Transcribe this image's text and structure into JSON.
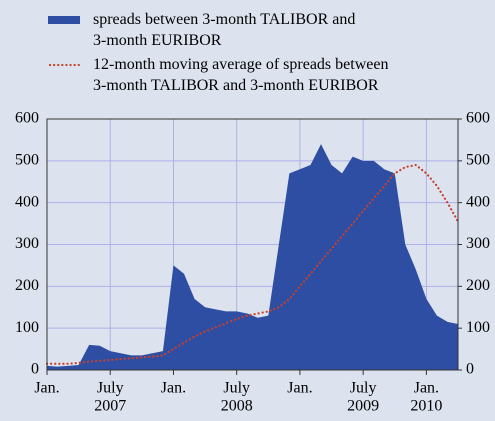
{
  "chart_data": {
    "type": "area",
    "x": [
      "2007-01",
      "2007-02",
      "2007-03",
      "2007-04",
      "2007-05",
      "2007-06",
      "2007-07",
      "2007-08",
      "2007-09",
      "2007-10",
      "2007-11",
      "2007-12",
      "2008-01",
      "2008-02",
      "2008-03",
      "2008-04",
      "2008-05",
      "2008-06",
      "2008-07",
      "2008-08",
      "2008-09",
      "2008-10",
      "2008-11",
      "2008-12",
      "2009-01",
      "2009-02",
      "2009-03",
      "2009-04",
      "2009-05",
      "2009-06",
      "2009-07",
      "2009-08",
      "2009-09",
      "2009-10",
      "2009-11",
      "2009-12",
      "2010-01",
      "2010-02",
      "2010-03",
      "2010-04"
    ],
    "series": [
      {
        "name": "spreads between 3-month TALIBOR and\n3-month  EURIBOR",
        "color": "#2d4ea3",
        "style": "area",
        "values": [
          10,
          8,
          10,
          12,
          60,
          58,
          45,
          40,
          35,
          35,
          40,
          45,
          250,
          230,
          170,
          150,
          145,
          140,
          140,
          135,
          125,
          130,
          300,
          470,
          480,
          490,
          540,
          490,
          470,
          510,
          500,
          500,
          480,
          470,
          300,
          240,
          170,
          130,
          115,
          110
        ]
      },
      {
        "name": "12-month moving average of spreads between\n3-month TALIBOR and 3-month EURIBOR",
        "color": "#c8402c",
        "style": "dotted",
        "values": [
          15,
          15,
          15,
          17,
          20,
          22,
          24,
          26,
          28,
          30,
          32,
          35,
          50,
          65,
          80,
          92,
          102,
          112,
          122,
          130,
          135,
          140,
          150,
          170,
          200,
          230,
          260,
          290,
          320,
          350,
          380,
          410,
          440,
          470,
          485,
          490,
          470,
          440,
          400,
          355
        ]
      }
    ],
    "xlim": [
      "2007-01",
      "2010-04"
    ],
    "xticks": [
      {
        "value": "2007-01",
        "label": "Jan."
      },
      {
        "value": "2007-07",
        "label": "July"
      },
      {
        "value": "2008-01",
        "label": "Jan."
      },
      {
        "value": "2008-07",
        "label": "July"
      },
      {
        "value": "2009-01",
        "label": "Jan."
      },
      {
        "value": "2009-07",
        "label": "July"
      },
      {
        "value": "2010-01",
        "label": "Jan."
      }
    ],
    "xyears": [
      {
        "value": "2007-07",
        "label": "2007"
      },
      {
        "value": "2008-07",
        "label": "2008"
      },
      {
        "value": "2009-07",
        "label": "2009"
      },
      {
        "value": "2010-01",
        "label": "2010"
      }
    ],
    "ylim": [
      0,
      600
    ],
    "yticks": [
      0,
      100,
      200,
      300,
      400,
      500,
      600
    ],
    "y2lim": [
      0,
      600
    ],
    "y2ticks": [
      0,
      100,
      200,
      300,
      400,
      500,
      600
    ],
    "grid": true
  }
}
